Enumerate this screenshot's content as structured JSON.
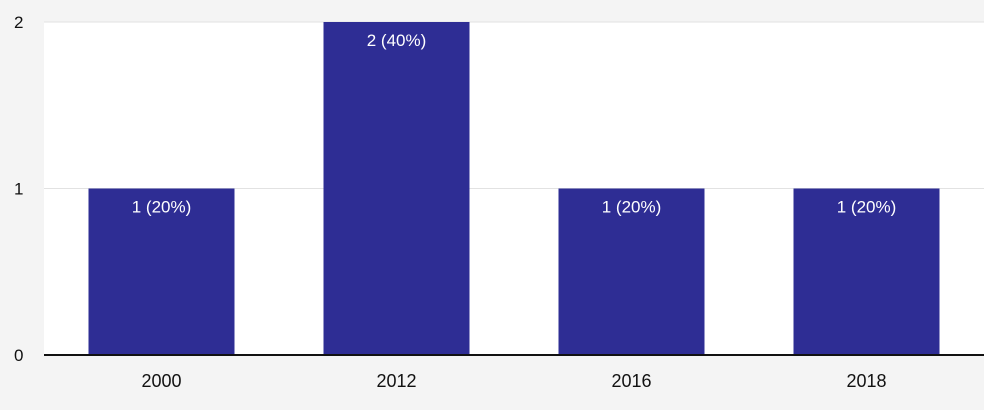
{
  "chart_data": {
    "type": "bar",
    "categories": [
      "2000",
      "2012",
      "2016",
      "2018"
    ],
    "values": [
      1,
      2,
      1,
      1
    ],
    "data_labels": [
      "1 (20%)",
      "2 (40%)",
      "1 (20%)",
      "1 (20%)"
    ],
    "y_ticks": [
      "0",
      "1",
      "2"
    ],
    "ylim": [
      0,
      2
    ],
    "grid": true,
    "bar_color": "#2e2d94",
    "band_color": "#ffffff",
    "title": "",
    "xlabel": "",
    "ylabel": ""
  }
}
